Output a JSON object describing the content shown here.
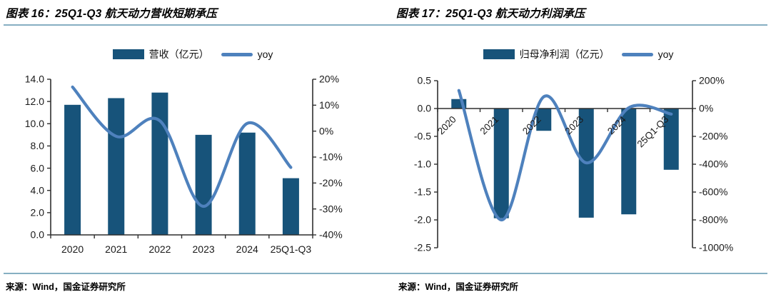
{
  "page": {
    "background": "#ffffff"
  },
  "colors": {
    "bar": "#17537A",
    "line": "#4E81BD",
    "rule": "#86AFC2",
    "axis": "#2f2f2f",
    "text": "#1a1a1a"
  },
  "footer": {
    "source_left": "来源：Wind，国金证券研究所",
    "source_right": "来源：Wind，国金证券研究所"
  },
  "chart_data": [
    {
      "id": "figure-16",
      "type": "bar+line",
      "title": "图表 16：25Q1-Q3 航天动力营收短期承压",
      "categories": [
        "2020",
        "2021",
        "2022",
        "2023",
        "2024",
        "25Q1-Q3"
      ],
      "series": [
        {
          "name": "营收（亿元）",
          "type": "bar",
          "axis": "left",
          "values": [
            11.7,
            12.3,
            12.8,
            9.0,
            9.2,
            5.1
          ]
        },
        {
          "name": "yoy",
          "type": "line",
          "axis": "right",
          "unit": "%",
          "values": [
            17,
            -2,
            4,
            -29,
            3,
            -14
          ]
        }
      ],
      "left_axis": {
        "min": 0,
        "max": 14,
        "step": 2,
        "ticks": [
          "14.0",
          "12.0",
          "10.0",
          "8.0",
          "6.0",
          "4.0",
          "2.0",
          "0.0"
        ]
      },
      "right_axis": {
        "min": -40,
        "max": 20,
        "step": 10,
        "suffix": "%",
        "ticks": [
          "20%",
          "10%",
          "0%",
          "-10%",
          "-20%",
          "-30%",
          "-40%"
        ]
      },
      "legend_position": "top-center",
      "grid": false,
      "x_label_rotation": 0
    },
    {
      "id": "figure-17",
      "type": "bar+line",
      "title": "图表 17：25Q1-Q3 航天动力利润承压",
      "categories": [
        "2020",
        "2021",
        "2022",
        "2023",
        "2024",
        "25Q1-Q3"
      ],
      "series": [
        {
          "name": "归母净利润（亿元）",
          "type": "bar",
          "axis": "left",
          "values": [
            0.17,
            -1.97,
            -0.4,
            -1.96,
            -1.9,
            -1.1
          ]
        },
        {
          "name": "yoy",
          "type": "line",
          "axis": "right",
          "unit": "%",
          "values": [
            130,
            -800,
            85,
            -390,
            5,
            -40
          ]
        }
      ],
      "left_axis": {
        "min": -2.5,
        "max": 0.5,
        "step": 0.5,
        "ticks": [
          "0.5",
          "0.0",
          "-0.5",
          "-1.0",
          "-1.5",
          "-2.0",
          "-2.5"
        ]
      },
      "right_axis": {
        "min": -1000,
        "max": 200,
        "step": 200,
        "suffix": "%",
        "ticks": [
          "200%",
          "0%",
          "-200%",
          "-400%",
          "-600%",
          "-800%",
          "-1000%"
        ]
      },
      "legend_position": "top-center",
      "grid": false,
      "x_label_rotation": -45
    }
  ]
}
